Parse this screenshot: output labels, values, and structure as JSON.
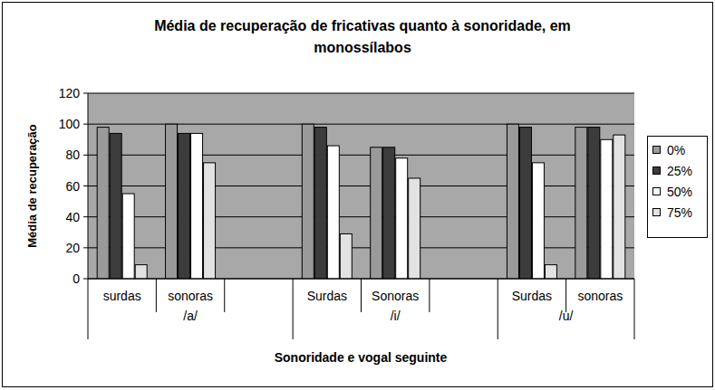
{
  "chart_data": {
    "type": "bar",
    "title": "Média de recuperação de fricativas quanto à sonoridade, em monossílabos",
    "x_label": "Sonoridade e vogal seguinte",
    "y_label": "Média de recuperação",
    "categories": [
      "surdas",
      "sonoras",
      null,
      "Surdas",
      "Sonoras",
      null,
      "Surdas",
      "sonoras"
    ],
    "groups": [
      {
        "label": "/a/",
        "size": 3
      },
      {
        "label": "/i/",
        "size": 3
      },
      {
        "label": "/u/",
        "size": 2
      }
    ],
    "series": [
      {
        "name": "0%",
        "color": "#9a9a9a",
        "values": [
          98,
          100,
          null,
          100,
          85,
          null,
          100,
          98
        ]
      },
      {
        "name": "25%",
        "color": "#3c3c3c",
        "values": [
          94,
          94,
          null,
          98,
          85,
          null,
          98,
          98
        ]
      },
      {
        "name": "50%",
        "color": "#ffffff",
        "values": [
          55,
          94,
          null,
          86,
          78,
          null,
          75,
          90
        ]
      },
      {
        "name": "75%",
        "color": "#e2e2e2",
        "values": [
          9,
          75,
          null,
          29,
          65,
          null,
          9,
          93
        ]
      }
    ],
    "ylim": [
      0,
      120
    ],
    "yticks": [
      0,
      20,
      40,
      60,
      80,
      100,
      120
    ],
    "grid": true,
    "legend": "right"
  }
}
